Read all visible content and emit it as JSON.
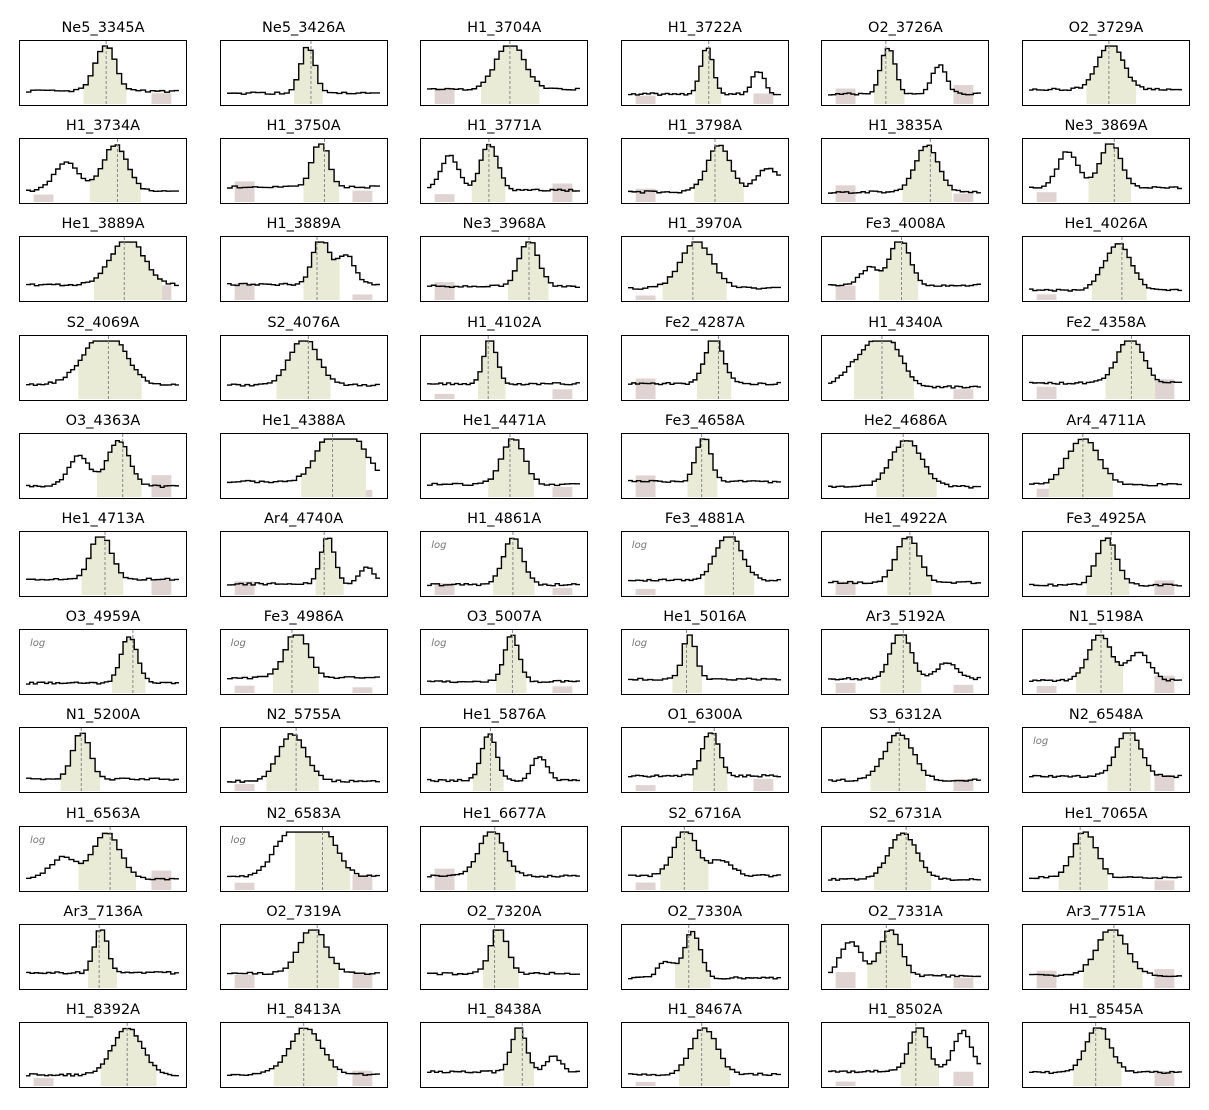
{
  "colors": {
    "line": "#000000",
    "fill": "#e9ebd6",
    "band": "#e0d4d2",
    "ref": "#888888"
  },
  "chart_data": {
    "type": "line",
    "panels": [
      {
        "title": "Ne5_3345A",
        "log": false
      },
      {
        "title": "Ne5_3426A",
        "log": false
      },
      {
        "title": "H1_3704A",
        "log": false
      },
      {
        "title": "H1_3722A",
        "log": false
      },
      {
        "title": "O2_3726A",
        "log": false
      },
      {
        "title": "O2_3729A",
        "log": false
      },
      {
        "title": "H1_3734A",
        "log": false
      },
      {
        "title": "H1_3750A",
        "log": false
      },
      {
        "title": "H1_3771A",
        "log": false
      },
      {
        "title": "H1_3798A",
        "log": false
      },
      {
        "title": "H1_3835A",
        "log": false
      },
      {
        "title": "Ne3_3869A",
        "log": false
      },
      {
        "title": "He1_3889A",
        "log": false
      },
      {
        "title": "H1_3889A",
        "log": false
      },
      {
        "title": "Ne3_3968A",
        "log": false
      },
      {
        "title": "H1_3970A",
        "log": false
      },
      {
        "title": "Fe3_4008A",
        "log": false
      },
      {
        "title": "He1_4026A",
        "log": false
      },
      {
        "title": "S2_4069A",
        "log": false
      },
      {
        "title": "S2_4076A",
        "log": false
      },
      {
        "title": "H1_4102A",
        "log": false
      },
      {
        "title": "Fe2_4287A",
        "log": false
      },
      {
        "title": "H1_4340A",
        "log": false
      },
      {
        "title": "Fe2_4358A",
        "log": false
      },
      {
        "title": "O3_4363A",
        "log": false
      },
      {
        "title": "He1_4388A",
        "log": false
      },
      {
        "title": "He1_4471A",
        "log": false
      },
      {
        "title": "Fe3_4658A",
        "log": false
      },
      {
        "title": "He2_4686A",
        "log": false
      },
      {
        "title": "Ar4_4711A",
        "log": false
      },
      {
        "title": "He1_4713A",
        "log": false
      },
      {
        "title": "Ar4_4740A",
        "log": false
      },
      {
        "title": "H1_4861A",
        "log": true,
        "log_label": "log"
      },
      {
        "title": "Fe3_4881A",
        "log": true,
        "log_label": "log"
      },
      {
        "title": "He1_4922A",
        "log": false
      },
      {
        "title": "Fe3_4925A",
        "log": false
      },
      {
        "title": "O3_4959A",
        "log": true,
        "log_label": "log"
      },
      {
        "title": "Fe3_4986A",
        "log": true,
        "log_label": "log"
      },
      {
        "title": "O3_5007A",
        "log": true,
        "log_label": "log"
      },
      {
        "title": "He1_5016A",
        "log": true,
        "log_label": "log"
      },
      {
        "title": "Ar3_5192A",
        "log": false
      },
      {
        "title": "N1_5198A",
        "log": false
      },
      {
        "title": "N1_5200A",
        "log": false
      },
      {
        "title": "N2_5755A",
        "log": false
      },
      {
        "title": "He1_5876A",
        "log": false
      },
      {
        "title": "O1_6300A",
        "log": false
      },
      {
        "title": "S3_6312A",
        "log": false
      },
      {
        "title": "N2_6548A",
        "log": true,
        "log_label": "log"
      },
      {
        "title": "H1_6563A",
        "log": true,
        "log_label": "log"
      },
      {
        "title": "N2_6583A",
        "log": true,
        "log_label": "log"
      },
      {
        "title": "He1_6677A",
        "log": false
      },
      {
        "title": "S2_6716A",
        "log": false
      },
      {
        "title": "S2_6731A",
        "log": false
      },
      {
        "title": "He1_7065A",
        "log": false
      },
      {
        "title": "Ar3_7136A",
        "log": false
      },
      {
        "title": "O2_7319A",
        "log": false
      },
      {
        "title": "O2_7320A",
        "log": false
      },
      {
        "title": "O2_7330A",
        "log": false
      },
      {
        "title": "O2_7331A",
        "log": false
      },
      {
        "title": "Ar3_7751A",
        "log": false
      },
      {
        "title": "H1_8392A",
        "log": false
      },
      {
        "title": "H1_8413A",
        "log": false
      },
      {
        "title": "H1_8438A",
        "log": false
      },
      {
        "title": "H1_8467A",
        "log": false
      },
      {
        "title": "H1_8502A",
        "log": false
      },
      {
        "title": "H1_8545A",
        "log": false
      }
    ]
  }
}
